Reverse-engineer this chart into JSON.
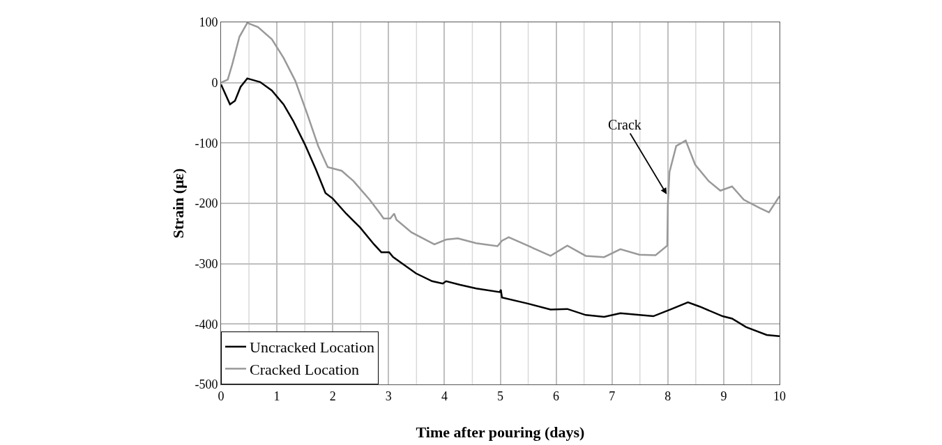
{
  "chart_data": {
    "type": "line",
    "xlabel": "Time after pouring (days)",
    "ylabel": "Strain (με)",
    "xlim": [
      0,
      10
    ],
    "xticks": [
      0,
      1,
      2,
      3,
      4,
      5,
      6,
      7,
      8,
      9,
      10
    ],
    "ylim": [
      -500,
      100
    ],
    "yticks": [
      -500,
      -400,
      -300,
      -200,
      -100,
      0,
      100
    ],
    "grid": true,
    "legend": "bottom left",
    "marker": "none",
    "line_style": "solid",
    "annotations": [
      {
        "text": "Crack",
        "x": 7.98,
        "y": -185
      }
    ],
    "series": [
      {
        "name": "Uncracked Location",
        "color": "#000000",
        "x": [
          0,
          0.16,
          0.25,
          0.35,
          0.47,
          0.7,
          0.91,
          1.12,
          1.29,
          1.5,
          1.7,
          1.87,
          2.0,
          2.24,
          2.49,
          2.74,
          2.87,
          3.01,
          3.08,
          3.28,
          3.49,
          3.78,
          3.97,
          4.03,
          4.28,
          4.57,
          4.99,
          5.01,
          5.03,
          5.49,
          5.9,
          6.2,
          6.53,
          6.86,
          7.15,
          7.74,
          8.07,
          8.36,
          8.57,
          8.98,
          9.15,
          9.4,
          9.77,
          10
        ],
        "values": [
          -3,
          -36,
          -30,
          -7,
          7,
          1,
          -13,
          -36,
          -63,
          -102,
          -144,
          -183,
          -192,
          -217,
          -240,
          -268,
          -281,
          -281,
          -289,
          -302,
          -316,
          -329,
          -333,
          -329,
          -335,
          -341,
          -347,
          -343,
          -356,
          -366,
          -376,
          -375,
          -385,
          -388,
          -382,
          -387,
          -375,
          -364,
          -371,
          -387,
          -391,
          -405,
          -418,
          -420
        ]
      },
      {
        "name": "Cracked Location",
        "color": "#999999",
        "x": [
          0,
          0.12,
          0.2,
          0.33,
          0.47,
          0.66,
          0.91,
          1.12,
          1.33,
          1.54,
          1.74,
          1.91,
          2.16,
          2.37,
          2.66,
          2.85,
          2.91,
          3.03,
          3.1,
          3.14,
          3.41,
          3.82,
          4.03,
          4.24,
          4.57,
          4.95,
          5.03,
          5.15,
          5.49,
          5.9,
          6.2,
          6.53,
          6.86,
          7.15,
          7.49,
          7.78,
          7.99,
          8.0,
          8.03,
          8.15,
          8.32,
          8.49,
          8.73,
          8.94,
          9.15,
          9.36,
          9.65,
          9.81,
          10
        ],
        "values": [
          0,
          5,
          30,
          76,
          99,
          92,
          72,
          41,
          3,
          -51,
          -105,
          -140,
          -146,
          -163,
          -194,
          -217,
          -225,
          -225,
          -217,
          -227,
          -248,
          -268,
          -260,
          -258,
          -266,
          -271,
          -262,
          -256,
          -270,
          -287,
          -270,
          -287,
          -289,
          -276,
          -285,
          -286,
          -270,
          -202,
          -148,
          -105,
          -96,
          -136,
          -163,
          -179,
          -172,
          -194,
          -208,
          -215,
          -188
        ]
      }
    ]
  }
}
